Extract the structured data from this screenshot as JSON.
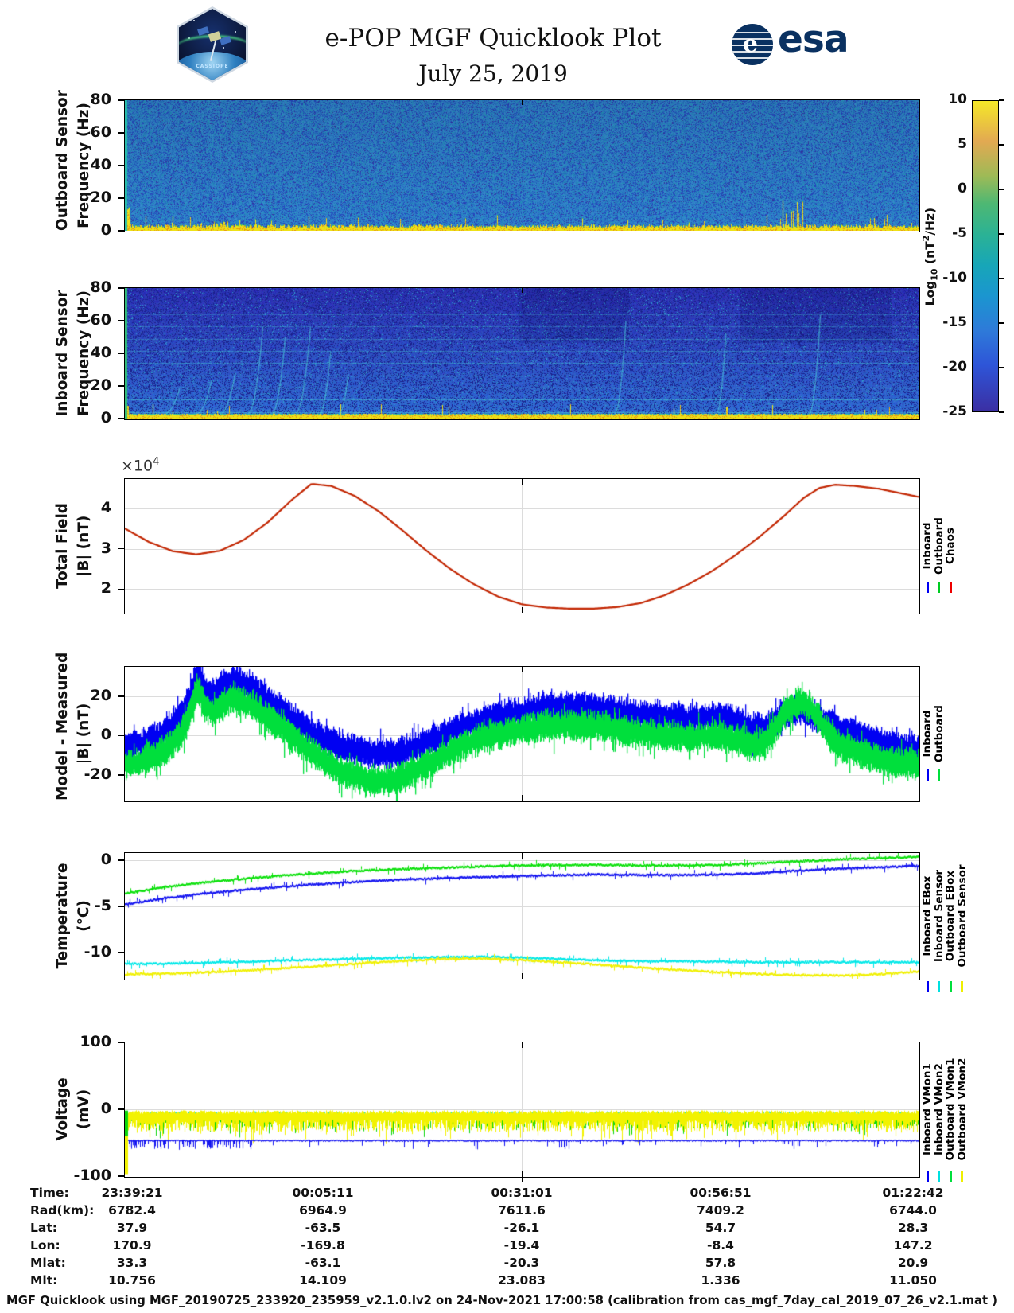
{
  "header": {
    "title": "e-POP MGF Quicklook Plot",
    "date": "July 25, 2019",
    "mission_patch": "CASSIOPE",
    "esa_logo": "esa"
  },
  "colorbar": {
    "label_parts": {
      "pre": "Log",
      "sub": "10",
      "mid": " (nT",
      "sup": "2",
      "post": "/Hz)"
    },
    "ticks": [
      "10",
      "5",
      "0",
      "-5",
      "-10",
      "-15",
      "-20",
      "-25"
    ]
  },
  "panels": [
    {
      "id": "outboard-spectrogram",
      "ylabel1": "Outboard Sensor",
      "ylabel2": "Frequency (Hz)",
      "yticks": [
        "80",
        "60",
        "40",
        "20",
        "0"
      ],
      "legend": []
    },
    {
      "id": "inboard-spectrogram",
      "ylabel1": "Inboard Sensor",
      "ylabel2": "Frequency (Hz)",
      "yticks": [
        "80",
        "60",
        "40",
        "20",
        "0"
      ],
      "legend": []
    },
    {
      "id": "total-field",
      "ylabel1": "Total Field",
      "ylabel2": "|B| (nT)",
      "offset_base": "×10",
      "offset_exp": "4",
      "yticks": [
        "4",
        "3",
        "2"
      ],
      "legend": [
        {
          "label": "Inboard",
          "color": "#0000F2"
        },
        {
          "label": "Outboard",
          "color": "#00CC22"
        },
        {
          "label": "Chaos",
          "color": "#EE0000"
        }
      ]
    },
    {
      "id": "model-measured",
      "ylabel1": "Model - Measured",
      "ylabel2": "|B| (nT)",
      "yticks": [
        "20",
        "0",
        "-20"
      ],
      "legend": [
        {
          "label": "Inboard",
          "color": "#0000F2"
        },
        {
          "label": "Outboard",
          "color": "#00DF3C"
        }
      ]
    },
    {
      "id": "temperature",
      "ylabel1": "Temperature",
      "ylabel2": "(°C)",
      "yticks": [
        "0",
        "-5",
        "-10"
      ],
      "legend": [
        {
          "label": "Inboard EBox",
          "color": "#0000F2"
        },
        {
          "label": "Inboard Sensor",
          "color": "#00E0E0"
        },
        {
          "label": "Outboard EBox",
          "color": "#00DF3C"
        },
        {
          "label": "Outboard Sensor",
          "color": "#EFEF00"
        }
      ]
    },
    {
      "id": "voltage",
      "ylabel1": "Voltage",
      "ylabel2": "(mV)",
      "yticks": [
        "100",
        "0",
        "-100"
      ],
      "legend": [
        {
          "label": "Inboard VMon1",
          "color": "#0000F2"
        },
        {
          "label": "Inboard VMon2",
          "color": "#00E0E0"
        },
        {
          "label": "Outboard VMon1",
          "color": "#00DF3C"
        },
        {
          "label": "Outboard VMon2",
          "color": "#EFEF00"
        }
      ]
    }
  ],
  "table": {
    "rows": [
      {
        "label": "Time:",
        "values": [
          "23:39:21",
          "00:05:11",
          "00:31:01",
          "00:56:51",
          "01:22:42"
        ]
      },
      {
        "label": "Rad(km):",
        "values": [
          "6782.4",
          "6964.9",
          "7611.6",
          "7409.2",
          "6744.0"
        ]
      },
      {
        "label": "Lat:",
        "values": [
          "37.9",
          "-63.5",
          "-26.1",
          "54.7",
          "28.3"
        ]
      },
      {
        "label": "Lon:",
        "values": [
          "170.9",
          "-169.8",
          "-19.4",
          "-8.4",
          "147.2"
        ]
      },
      {
        "label": "Mlat:",
        "values": [
          "33.3",
          "-63.1",
          "-20.3",
          "57.8",
          "20.9"
        ]
      },
      {
        "label": "Mlt:",
        "values": [
          "10.756",
          "14.109",
          "23.083",
          "1.336",
          "11.050"
        ]
      }
    ]
  },
  "footer": "MGF Quicklook using MGF_20190725_233920_235959_v2.1.0.lv2 on 24-Nov-2021 17:00:58 (calibration from cas_mgf_7day_cal_2019_07_26_v2.1.mat )",
  "chart_data": [
    {
      "type": "heatmap",
      "name": "Outboard Sensor spectrogram",
      "x_range": [
        "23:39:21",
        "01:22:42"
      ],
      "ylabel": "Frequency (Hz)",
      "ylim": [
        0,
        80
      ],
      "yticks": [
        0,
        20,
        40,
        60,
        80
      ],
      "value_label": "Log10 (nT2/Hz)",
      "clim": [
        -25,
        10
      ],
      "background_level": -13,
      "features": [
        "uniform mid-blue broadband noise ~-13 over 5-80 Hz",
        "intense yellow band below ~3 Hz at ~0 to +5",
        "noise spikes above the low band near start, ~10% and ~83% of span"
      ],
      "spike_clusters": [
        {
          "x": 0.0,
          "w": 0.008,
          "hz": 13
        },
        {
          "x": 0.095,
          "w": 0.04,
          "hz": 5
        },
        {
          "x": 0.822,
          "w": 0.032,
          "hz": 16
        }
      ]
    },
    {
      "type": "heatmap",
      "name": "Inboard Sensor spectrogram",
      "x_range": [
        "23:39:21",
        "01:22:42"
      ],
      "ylabel": "Frequency (Hz)",
      "ylim": [
        0,
        80
      ],
      "yticks": [
        0,
        20,
        40,
        60,
        80
      ],
      "value_label": "Log10 (nT2/Hz)",
      "clim": [
        -25,
        10
      ],
      "background_level": -18,
      "harmonics_hz": [
        4,
        11.5,
        19,
        26.5,
        34,
        41.5,
        49,
        56.5,
        64
      ],
      "chirps": [
        {
          "x": 0.05,
          "w": 0.02,
          "f1": 20
        },
        {
          "x": 0.09,
          "w": 0.02,
          "f1": 25
        },
        {
          "x": 0.12,
          "w": 0.02,
          "f1": 30
        },
        {
          "x": 0.155,
          "w": 0.02,
          "f1": 62
        },
        {
          "x": 0.185,
          "w": 0.018,
          "f1": 55
        },
        {
          "x": 0.215,
          "w": 0.02,
          "f1": 62
        },
        {
          "x": 0.245,
          "w": 0.015,
          "f1": 45
        },
        {
          "x": 0.27,
          "w": 0.012,
          "f1": 30
        },
        {
          "x": 0.617,
          "w": 0.015,
          "f1": 66
        },
        {
          "x": 0.745,
          "w": 0.013,
          "f1": 58
        },
        {
          "x": 0.862,
          "w": 0.015,
          "f1": 70
        }
      ],
      "dark_blocks": [
        {
          "x0": 0.495,
          "x1": 0.635
        },
        {
          "x0": 0.775,
          "x1": 0.965
        }
      ],
      "features": [
        "dark blue background, intensity decreasing with frequency",
        "horizontal interference lines every ~7.5 Hz",
        "rising chirp signatures",
        "intense yellow band below ~3 Hz",
        "green-teal edge column at start"
      ]
    },
    {
      "type": "line",
      "name": "Total Field |B| (nT)",
      "y_exponent": 4,
      "ylim": [
        1.42,
        4.72
      ],
      "yticks": [
        2,
        3,
        4
      ],
      "note": "Inboard, Outboard and Chaos curves overlap almost exactly",
      "x": [
        0,
        0.03,
        0.06,
        0.09,
        0.12,
        0.15,
        0.18,
        0.21,
        0.235,
        0.26,
        0.29,
        0.32,
        0.35,
        0.38,
        0.41,
        0.44,
        0.47,
        0.5,
        0.53,
        0.56,
        0.59,
        0.62,
        0.65,
        0.68,
        0.71,
        0.74,
        0.77,
        0.8,
        0.83,
        0.855,
        0.875,
        0.895,
        0.92,
        0.95,
        0.975,
        1.0
      ],
      "y": [
        3.5,
        3.17,
        2.94,
        2.86,
        2.95,
        3.22,
        3.65,
        4.2,
        4.6,
        4.55,
        4.3,
        3.92,
        3.45,
        2.95,
        2.5,
        2.12,
        1.82,
        1.63,
        1.55,
        1.52,
        1.52,
        1.56,
        1.66,
        1.85,
        2.12,
        2.45,
        2.85,
        3.3,
        3.8,
        4.25,
        4.5,
        4.58,
        4.55,
        4.48,
        4.38,
        4.28
      ],
      "series": [
        {
          "name": "Inboard",
          "color": "#0000F2"
        },
        {
          "name": "Outboard",
          "color": "#00CC22"
        },
        {
          "name": "Chaos",
          "color": "#C22500"
        }
      ]
    },
    {
      "type": "line",
      "name": "Model - Measured |B| (nT)",
      "ylim": [
        -33,
        35
      ],
      "yticks": [
        -20,
        0,
        20
      ],
      "band_halfwidth": 6,
      "x": [
        0,
        0.02,
        0.04,
        0.055,
        0.07,
        0.08,
        0.088,
        0.093,
        0.1,
        0.11,
        0.12,
        0.13,
        0.14,
        0.155,
        0.17,
        0.19,
        0.21,
        0.23,
        0.25,
        0.27,
        0.29,
        0.31,
        0.33,
        0.35,
        0.37,
        0.39,
        0.41,
        0.43,
        0.45,
        0.47,
        0.5,
        0.53,
        0.56,
        0.59,
        0.62,
        0.65,
        0.68,
        0.71,
        0.73,
        0.75,
        0.77,
        0.79,
        0.805,
        0.82,
        0.835,
        0.85,
        0.865,
        0.88,
        0.9,
        0.92,
        0.94,
        0.96,
        0.98,
        1.0
      ],
      "series": [
        {
          "name": "Inboard",
          "color": "#0000F2",
          "y": [
            -6,
            -4,
            -1,
            3,
            10,
            18,
            30,
            32,
            24,
            20,
            24,
            27,
            28,
            25,
            21,
            15,
            9,
            3,
            -2,
            -5,
            -7,
            -9,
            -9,
            -8,
            -5,
            -2,
            2,
            5,
            8,
            10,
            12,
            14,
            14,
            14,
            12,
            10,
            9,
            8,
            9,
            9,
            7,
            4,
            3,
            8,
            12,
            13,
            10,
            7,
            4,
            1,
            -2,
            -5,
            -7,
            -8
          ]
        },
        {
          "name": "Outboard",
          "color": "#00DF3C",
          "y": [
            -15,
            -13,
            -10,
            -6,
            1,
            9,
            21,
            24,
            15,
            11,
            15,
            18,
            19,
            16,
            12,
            6,
            0,
            -7,
            -13,
            -18,
            -21,
            -23,
            -23,
            -21,
            -17,
            -13,
            -8,
            -4,
            -1,
            1,
            3,
            5,
            5,
            5,
            3,
            1,
            0,
            -1,
            0,
            0,
            -2,
            -5,
            -4,
            4,
            14,
            17,
            14,
            4,
            -5,
            -8,
            -11,
            -13,
            -14,
            -15
          ]
        }
      ]
    },
    {
      "type": "line",
      "name": "Temperature (degC)",
      "ylim": [
        -12.9,
        0.8
      ],
      "yticks": [
        -10,
        -5,
        0
      ],
      "x": [
        0,
        0.05,
        0.1,
        0.15,
        0.2,
        0.25,
        0.3,
        0.35,
        0.4,
        0.45,
        0.5,
        0.55,
        0.6,
        0.65,
        0.7,
        0.75,
        0.8,
        0.85,
        0.9,
        0.95,
        1.0
      ],
      "series": [
        {
          "name": "Inboard EBox",
          "color": "#1414F0",
          "y": [
            -4.8,
            -4.1,
            -3.6,
            -3.2,
            -2.85,
            -2.55,
            -2.3,
            -2.1,
            -1.95,
            -1.8,
            -1.7,
            -1.6,
            -1.55,
            -1.6,
            -1.6,
            -1.55,
            -1.4,
            -1.1,
            -0.9,
            -0.75,
            -0.6
          ]
        },
        {
          "name": "Inboard Sensor",
          "color": "#00E8E8",
          "y": [
            -11.3,
            -11.25,
            -11.15,
            -11.05,
            -10.9,
            -10.8,
            -10.7,
            -10.6,
            -10.55,
            -10.5,
            -10.6,
            -10.75,
            -10.9,
            -11.0,
            -11.0,
            -11.05,
            -11.1,
            -11.1,
            -11.1,
            -11.1,
            -11.1
          ]
        },
        {
          "name": "Outboard EBox",
          "color": "#0AE00A",
          "y": [
            -3.6,
            -2.9,
            -2.4,
            -2.0,
            -1.65,
            -1.35,
            -1.1,
            -0.95,
            -0.8,
            -0.65,
            -0.55,
            -0.5,
            -0.5,
            -0.55,
            -0.55,
            -0.5,
            -0.3,
            -0.1,
            0.1,
            0.25,
            0.4
          ]
        },
        {
          "name": "Outboard Sensor",
          "color": "#F0F000",
          "y": [
            -12.4,
            -12.35,
            -12.2,
            -12.0,
            -11.75,
            -11.5,
            -11.2,
            -10.95,
            -10.75,
            -10.7,
            -10.85,
            -11.1,
            -11.4,
            -11.7,
            -11.95,
            -12.2,
            -12.4,
            -12.5,
            -12.55,
            -12.4,
            -12.1
          ]
        }
      ]
    },
    {
      "type": "line",
      "name": "Voltage (mV)",
      "ylim": [
        -100,
        100
      ],
      "yticks": [
        -100,
        0,
        100
      ],
      "note": "all channels drop to ~-97 mV at the very start of the pass",
      "series": [
        {
          "name": "Inboard VMon1",
          "color": "#1414F0",
          "level": -46,
          "spikes_to": -60
        },
        {
          "name": "Inboard VMon2",
          "color": "#00E8E8",
          "level": -5
        },
        {
          "name": "Outboard VMon1",
          "color": "#0AD60A",
          "range": [
            -8,
            -24
          ]
        },
        {
          "name": "Outboard VMon2",
          "color": "#F2F200",
          "range": [
            -3,
            -38
          ]
        }
      ]
    }
  ]
}
